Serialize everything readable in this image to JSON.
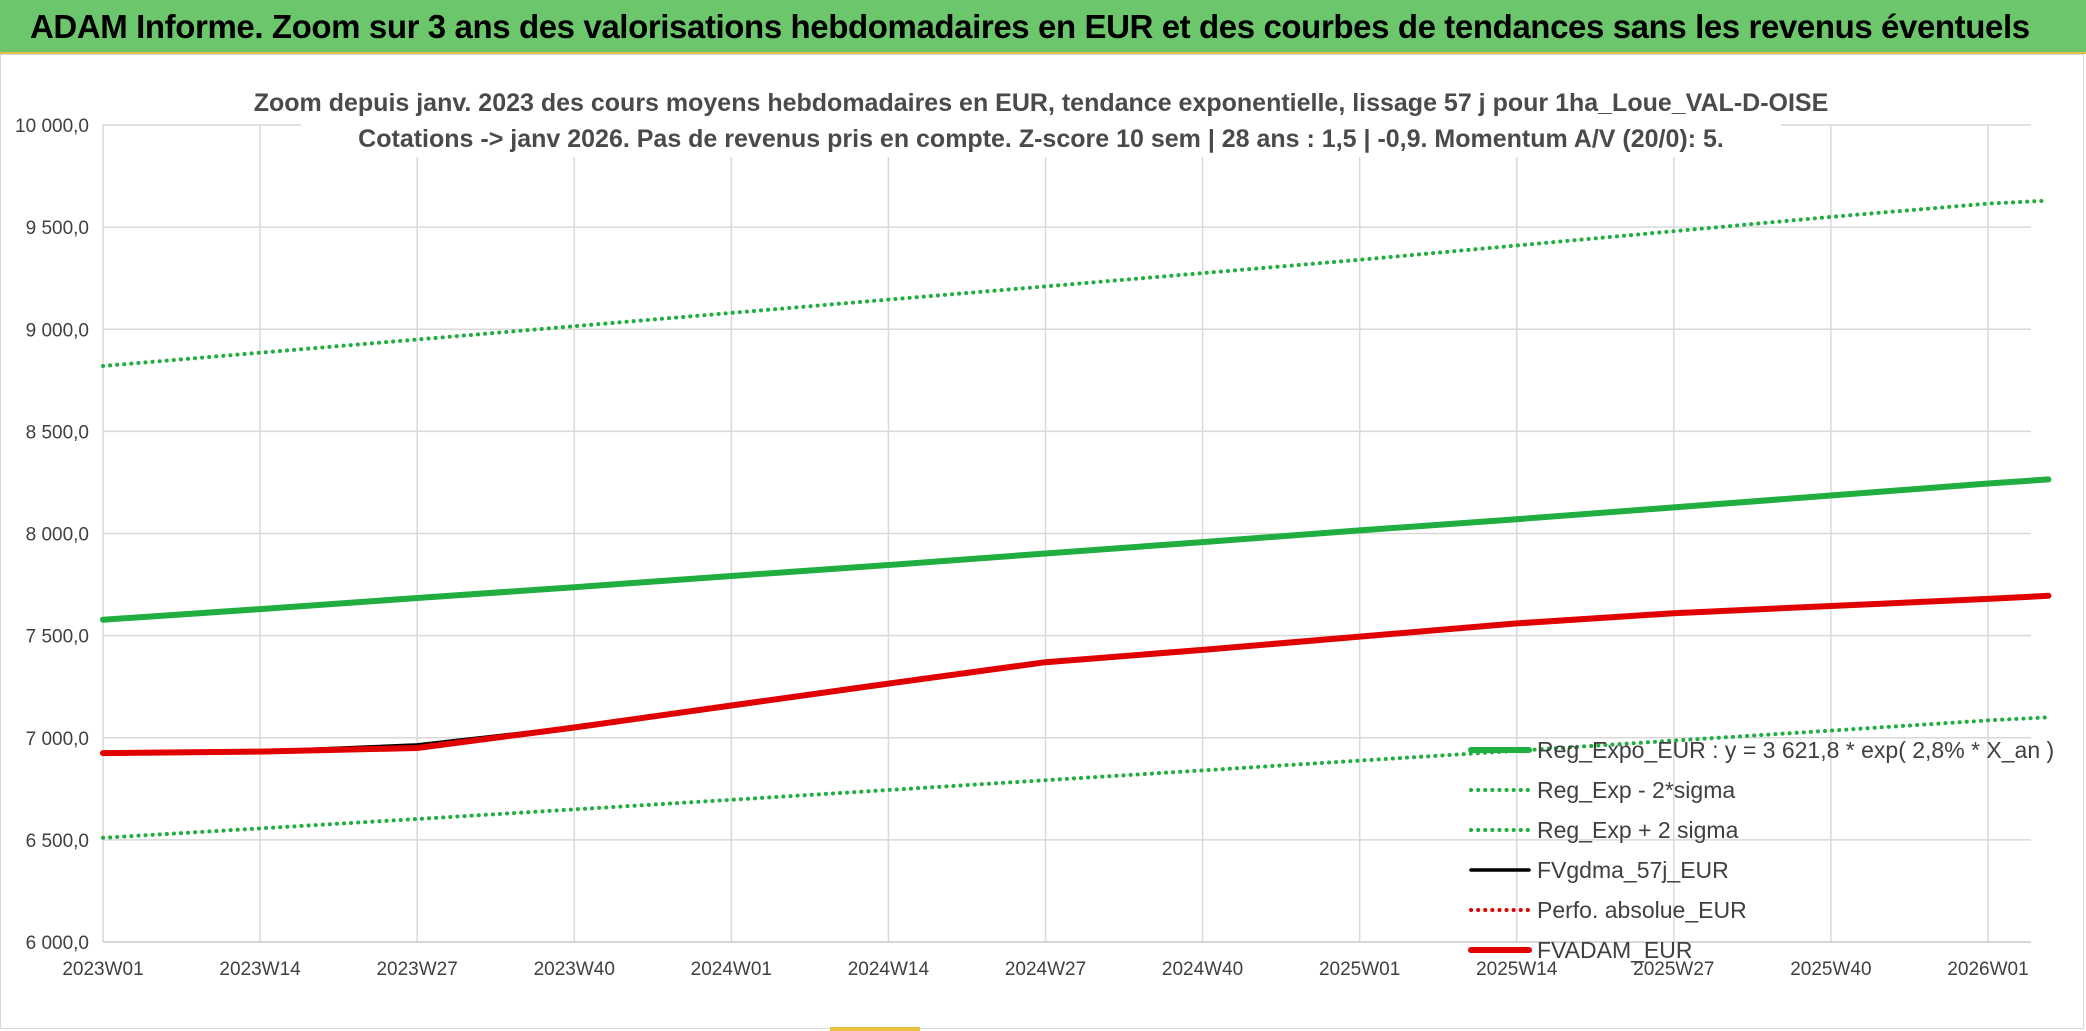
{
  "header": {
    "title": "ADAM Informe. Zoom sur 3 ans des valorisations hebdomadaires en EUR et des courbes de tendances sans les revenus éventuels"
  },
  "chart_data": {
    "type": "line",
    "title_line1": "Zoom depuis janv. 2023 des cours moyens hebdomadaires en EUR, tendance exponentielle, lissage 57 j pour 1ha_Loue_VAL-D-OISE",
    "title_line2": "Cotations -> janv 2026. Pas de revenus pris en compte. Z-score 10 sem | 28 ans : 1,5 | -0,9. Momentum A/V (20/0): 5.",
    "xlabel": "",
    "ylabel": "",
    "ylim": [
      6000,
      10000
    ],
    "y_ticks": [
      "6 000,0",
      "6 500,0",
      "7 000,0",
      "7 500,0",
      "8 000,0",
      "8 500,0",
      "9 000,0",
      "9 500,0",
      "10 000,0"
    ],
    "x_ticks": [
      "2023W01",
      "2023W14",
      "2023W27",
      "2023W40",
      "2024W01",
      "2024W14",
      "2024W27",
      "2024W40",
      "2025W01",
      "2025W14",
      "2025W27",
      "2025W40",
      "2026W01"
    ],
    "x": [
      0,
      13,
      26,
      39,
      52,
      65,
      78,
      91,
      104,
      117,
      130,
      143,
      156,
      161
    ],
    "grid": true,
    "legend_position": "bottom-right",
    "series": [
      {
        "name": "Reg_Expo_EUR : y = 3 621,8 * exp( 2,8% *  X_an )",
        "color": "#1fae3f",
        "style": "solid",
        "width": "thick",
        "values": [
          7578,
          7630,
          7684,
          7737,
          7792,
          7846,
          7902,
          7958,
          8015,
          8070,
          8128,
          8186,
          8245,
          8265
        ]
      },
      {
        "name": "Reg_Exp - 2*sigma",
        "color": "#1fae3f",
        "style": "dotted",
        "width": "thin",
        "values": [
          6510,
          6556,
          6602,
          6649,
          6696,
          6744,
          6792,
          6840,
          6888,
          6936,
          6986,
          7035,
          7085,
          7100
        ]
      },
      {
        "name": "Reg_Exp + 2 sigma",
        "color": "#1fae3f",
        "style": "dotted",
        "width": "thin",
        "values": [
          8820,
          8885,
          8950,
          9015,
          9080,
          9145,
          9210,
          9275,
          9340,
          9410,
          9480,
          9550,
          9615,
          9630
        ]
      },
      {
        "name": "FVgdma_57j_EUR",
        "color": "#000000",
        "style": "solid",
        "width": "medium",
        "values": [
          6925,
          6933,
          6965,
          7052,
          7160,
          7268,
          7365,
          7430,
          7495,
          7560,
          7610,
          7645,
          7680,
          7690
        ]
      },
      {
        "name": "Perfo. absolue_EUR",
        "color": "#e00000",
        "style": "dotted",
        "width": "thin",
        "values": [
          6925,
          6932,
          6950,
          7050,
          7158,
          7265,
          7370,
          7430,
          7495,
          7560,
          7610,
          7645,
          7680,
          7695
        ]
      },
      {
        "name": "FVADAM_EUR",
        "color": "#e00000",
        "style": "solid",
        "width": "thick",
        "values": [
          6925,
          6932,
          6950,
          7050,
          7158,
          7265,
          7370,
          7430,
          7495,
          7560,
          7610,
          7645,
          7680,
          7695
        ]
      }
    ]
  }
}
